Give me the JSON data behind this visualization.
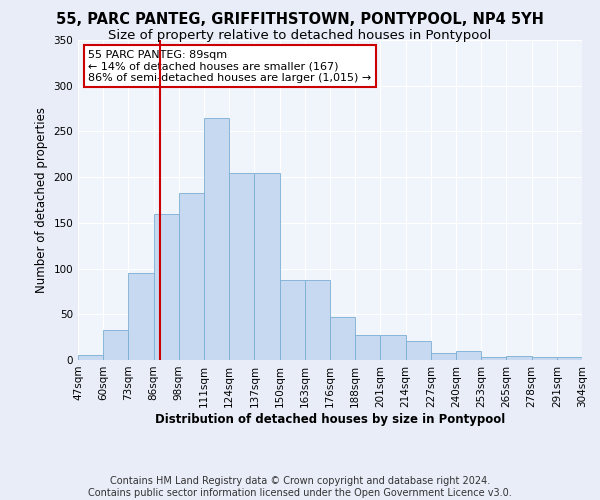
{
  "title": "55, PARC PANTEG, GRIFFITHSTOWN, PONTYPOOL, NP4 5YH",
  "subtitle": "Size of property relative to detached houses in Pontypool",
  "xlabel": "Distribution of detached houses by size in Pontypool",
  "ylabel": "Number of detached properties",
  "categories": [
    "47sqm",
    "60sqm",
    "73sqm",
    "86sqm",
    "98sqm",
    "111sqm",
    "124sqm",
    "137sqm",
    "150sqm",
    "163sqm",
    "176sqm",
    "188sqm",
    "201sqm",
    "214sqm",
    "227sqm",
    "240sqm",
    "253sqm",
    "265sqm",
    "278sqm",
    "291sqm",
    "304sqm"
  ],
  "bar_values": [
    6,
    33,
    95,
    160,
    183,
    265,
    205,
    205,
    88,
    88,
    47,
    27,
    27,
    21,
    8,
    10,
    3,
    4,
    3,
    3
  ],
  "bar_color": "#c6d9f0",
  "bar_edge_color": "#7bafd4",
  "vline_color": "#cc0000",
  "annotation_text": "55 PARC PANTEG: 89sqm\n← 14% of detached houses are smaller (167)\n86% of semi-detached houses are larger (1,015) →",
  "annotation_box_color": "#ffffff",
  "annotation_box_edge": "#cc0000",
  "ylim": [
    0,
    350
  ],
  "yticks": [
    0,
    50,
    100,
    150,
    200,
    250,
    300,
    350
  ],
  "footer": "Contains HM Land Registry data © Crown copyright and database right 2024.\nContains public sector information licensed under the Open Government Licence v3.0.",
  "bg_color": "#e8edf8",
  "plot_bg_color": "#f0f4fb",
  "title_fontsize": 10.5,
  "subtitle_fontsize": 9.5,
  "axis_label_fontsize": 8.5,
  "tick_fontsize": 7.5,
  "footer_fontsize": 7,
  "annotation_fontsize": 8
}
